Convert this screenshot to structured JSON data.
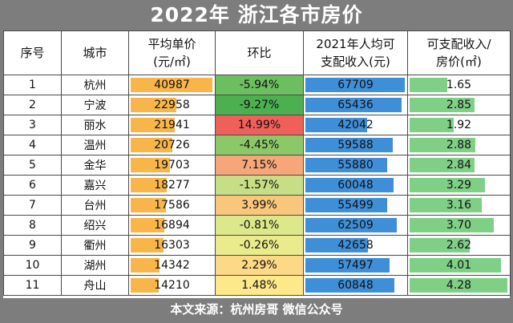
{
  "title": "2022年 浙江各市房价",
  "headers": [
    "序号",
    "城市",
    "平均单价\n(元/㎡)",
    "环比",
    "2021年人均可\n支配收入(元)",
    "可支配收入/\n房价(㎡)"
  ],
  "rows": [
    {
      "no": "1",
      "city": "杭州",
      "price": "40987",
      "price_val": 40987,
      "mom": "-5.94%",
      "mom_color": "#6cbf5f",
      "income": "67709",
      "income_val": 67709,
      "ratio": "1.65",
      "ratio_val": 1.65
    },
    {
      "no": "2",
      "city": "宁波",
      "price": "22958",
      "price_val": 22958,
      "mom": "-9.27%",
      "mom_color": "#4caf50",
      "income": "65436",
      "income_val": 65436,
      "ratio": "2.85",
      "ratio_val": 2.85
    },
    {
      "no": "3",
      "city": "丽水",
      "price": "21941",
      "price_val": 21941,
      "mom": "14.99%",
      "mom_color": "#f0605a",
      "income": "42042",
      "income_val": 42042,
      "ratio": "1.92",
      "ratio_val": 1.92
    },
    {
      "no": "4",
      "city": "温州",
      "price": "20726",
      "price_val": 20726,
      "mom": "-4.45%",
      "mom_color": "#8cc868",
      "income": "59588",
      "income_val": 59588,
      "ratio": "2.88",
      "ratio_val": 2.88
    },
    {
      "no": "5",
      "city": "金华",
      "price": "19703",
      "price_val": 19703,
      "mom": "7.15%",
      "mom_color": "#f6a779",
      "income": "55880",
      "income_val": 55880,
      "ratio": "2.84",
      "ratio_val": 2.84
    },
    {
      "no": "6",
      "city": "嘉兴",
      "price": "18277",
      "price_val": 18277,
      "mom": "-1.57%",
      "mom_color": "#c6de86",
      "income": "60048",
      "income_val": 60048,
      "ratio": "3.29",
      "ratio_val": 3.29
    },
    {
      "no": "7",
      "city": "台州",
      "price": "17586",
      "price_val": 17586,
      "mom": "3.99%",
      "mom_color": "#f8c77c",
      "income": "55499",
      "income_val": 55499,
      "ratio": "3.16",
      "ratio_val": 3.16
    },
    {
      "no": "8",
      "city": "绍兴",
      "price": "16894",
      "price_val": 16894,
      "mom": "-0.81%",
      "mom_color": "#dde88a",
      "income": "62509",
      "income_val": 62509,
      "ratio": "3.70",
      "ratio_val": 3.7
    },
    {
      "no": "9",
      "city": "衢州",
      "price": "16303",
      "price_val": 16303,
      "mom": "-0.26%",
      "mom_color": "#eaeb8c",
      "income": "42658",
      "income_val": 42658,
      "ratio": "2.62",
      "ratio_val": 2.62
    },
    {
      "no": "10",
      "city": "湖州",
      "price": "14342",
      "price_val": 14342,
      "mom": "2.29%",
      "mom_color": "#fbd986",
      "income": "57497",
      "income_val": 57497,
      "ratio": "4.01",
      "ratio_val": 4.01
    },
    {
      "no": "11",
      "city": "舟山",
      "price": "14210",
      "price_val": 14210,
      "mom": "1.48%",
      "mom_color": "#fde88a",
      "income": "60848",
      "income_val": 60848,
      "ratio": "4.28",
      "ratio_val": 4.28
    }
  ],
  "colors": {
    "price_bar": "#f8b64a",
    "income_bar": "#3f8fd8",
    "ratio_bar": "#7fcf86"
  },
  "footer": "本文来源：杭州房哥 微信公众号"
}
